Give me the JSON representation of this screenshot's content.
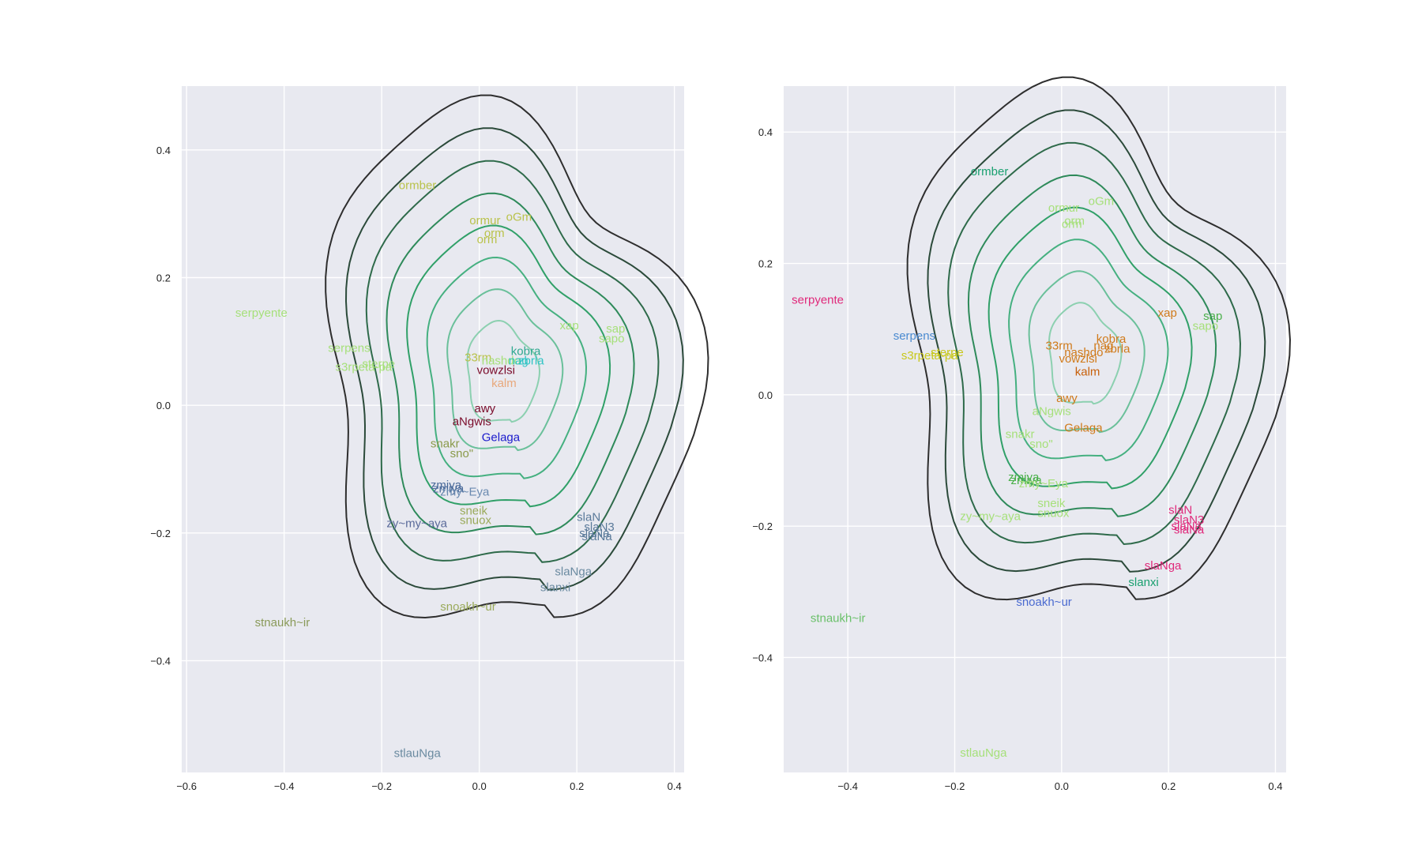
{
  "chart_data": [
    {
      "type": "contour",
      "title": "",
      "xlabel": "",
      "ylabel": "",
      "xlim": [
        -0.61,
        0.42
      ],
      "ylim": [
        -0.575,
        0.5
      ],
      "xticks": [
        -0.6,
        -0.4,
        -0.2,
        0.0,
        0.2,
        0.4
      ],
      "yticks": [
        -0.4,
        -0.2,
        0.0,
        0.2,
        0.4
      ],
      "xtick_labels": [
        "−0.6",
        "−0.4",
        "−0.2",
        "0.0",
        "0.2",
        "0.4"
      ],
      "ytick_labels": [
        "−0.4",
        "−0.2",
        "0.0",
        "0.2",
        "0.4"
      ],
      "grid": true,
      "background": "#e8e9f0",
      "kde_center": [
        0.045,
        0.05
      ],
      "points": [
        {
          "label": "serpyente",
          "x": -0.5,
          "y": 0.145,
          "color": "#a6e07a"
        },
        {
          "label": "ormber",
          "x": -0.165,
          "y": 0.345,
          "color": "#b9c24a"
        },
        {
          "label": "ormur",
          "x": -0.02,
          "y": 0.29,
          "color": "#b9c24a"
        },
        {
          "label": "oGm",
          "x": 0.055,
          "y": 0.295,
          "color": "#b9c24a"
        },
        {
          "label": "orm",
          "x": 0.01,
          "y": 0.27,
          "color": "#b9c24a"
        },
        {
          "label": "orm",
          "x": -0.005,
          "y": 0.26,
          "color": "#b9c24a"
        },
        {
          "label": "serpens",
          "x": -0.31,
          "y": 0.09,
          "color": "#a6e07a"
        },
        {
          "label": "s3rpeta-pa",
          "x": -0.295,
          "y": 0.06,
          "color": "#a6e07a"
        },
        {
          "label": "sterpe",
          "x": -0.24,
          "y": 0.065,
          "color": "#a6e07a"
        },
        {
          "label": "xap",
          "x": 0.165,
          "y": 0.125,
          "color": "#a6e07a"
        },
        {
          "label": "sap",
          "x": 0.26,
          "y": 0.12,
          "color": "#a6e07a"
        },
        {
          "label": "sapo",
          "x": 0.245,
          "y": 0.105,
          "color": "#a6e07a"
        },
        {
          "label": "33rm",
          "x": -0.03,
          "y": 0.075,
          "color": "#b9c24a"
        },
        {
          "label": "kobra",
          "x": 0.065,
          "y": 0.085,
          "color": "#2ea88f"
        },
        {
          "label": "nashdo",
          "x": 0.005,
          "y": 0.07,
          "color": "#a6e07a"
        },
        {
          "label": "nag",
          "x": 0.06,
          "y": 0.07,
          "color": "#2ec4c4"
        },
        {
          "label": "zbrla",
          "x": 0.08,
          "y": 0.07,
          "color": "#2ec4c4"
        },
        {
          "label": "vowzlsi",
          "x": -0.005,
          "y": 0.055,
          "color": "#7a0b2a"
        },
        {
          "label": "kalm",
          "x": 0.025,
          "y": 0.035,
          "color": "#e8a87c"
        },
        {
          "label": "awy",
          "x": -0.01,
          "y": -0.005,
          "color": "#7a0b2a"
        },
        {
          "label": "aNgwis",
          "x": -0.055,
          "y": -0.025,
          "color": "#7a0b2a"
        },
        {
          "label": "Gelaga",
          "x": 0.005,
          "y": -0.05,
          "color": "#1a1acc"
        },
        {
          "label": "snakr",
          "x": -0.1,
          "y": -0.06,
          "color": "#8a9a4a"
        },
        {
          "label": "sno\"",
          "x": -0.06,
          "y": -0.075,
          "color": "#8a9a4a"
        },
        {
          "label": "zmiya",
          "x": -0.1,
          "y": -0.125,
          "color": "#4a6a9a"
        },
        {
          "label": "zmiya",
          "x": -0.095,
          "y": -0.13,
          "color": "#4a6a9a"
        },
        {
          "label": "zmy~Eya",
          "x": -0.08,
          "y": -0.135,
          "color": "#6a8ab0"
        },
        {
          "label": "sneik",
          "x": -0.04,
          "y": -0.165,
          "color": "#9aaa5a"
        },
        {
          "label": "snuox",
          "x": -0.04,
          "y": -0.18,
          "color": "#9aaa5a"
        },
        {
          "label": "zy~my~aya",
          "x": -0.19,
          "y": -0.185,
          "color": "#5a6a9a"
        },
        {
          "label": "slaN",
          "x": 0.2,
          "y": -0.175,
          "color": "#5a7a9a"
        },
        {
          "label": "slaN3",
          "x": 0.215,
          "y": -0.19,
          "color": "#5a7a9a"
        },
        {
          "label": "slaNa",
          "x": 0.205,
          "y": -0.2,
          "color": "#5a7a9a"
        },
        {
          "label": "slaNa",
          "x": 0.21,
          "y": -0.205,
          "color": "#5a7a9a"
        },
        {
          "label": "slaNga",
          "x": 0.155,
          "y": -0.26,
          "color": "#6a8aa0"
        },
        {
          "label": "slanxi",
          "x": 0.125,
          "y": -0.285,
          "color": "#6a8aa0"
        },
        {
          "label": "snoakh~ur",
          "x": -0.08,
          "y": -0.315,
          "color": "#9aaa5a"
        },
        {
          "label": "stnaukh~ir",
          "x": -0.46,
          "y": -0.34,
          "color": "#8a9a5a"
        },
        {
          "label": "stlauNga",
          "x": -0.175,
          "y": -0.545,
          "color": "#6a8aa0"
        }
      ]
    },
    {
      "type": "contour",
      "title": "",
      "xlabel": "",
      "ylabel": "",
      "xlim": [
        -0.52,
        0.42
      ],
      "ylim": [
        -0.575,
        0.47
      ],
      "xticks": [
        -0.4,
        -0.2,
        0.0,
        0.2,
        0.4
      ],
      "yticks": [
        -0.4,
        -0.2,
        0.0,
        0.2,
        0.4
      ],
      "xtick_labels": [
        "−0.4",
        "−0.2",
        "0.0",
        "0.2",
        "0.4"
      ],
      "ytick_labels": [
        "−0.4",
        "−0.2",
        "0.0",
        "0.2",
        "0.4"
      ],
      "grid": true,
      "background": "#e8e9f0",
      "kde_center": [
        0.04,
        0.06
      ],
      "points": [
        {
          "label": "serpyente",
          "x": -0.505,
          "y": 0.145,
          "color": "#e0287a"
        },
        {
          "label": "ormber",
          "x": -0.17,
          "y": 0.34,
          "color": "#1aa070"
        },
        {
          "label": "ormur",
          "x": -0.025,
          "y": 0.285,
          "color": "#a6e07a"
        },
        {
          "label": "oGm",
          "x": 0.05,
          "y": 0.295,
          "color": "#a6e07a"
        },
        {
          "label": "orm",
          "x": 0.005,
          "y": 0.265,
          "color": "#a6e07a"
        },
        {
          "label": "orm",
          "x": 0.0,
          "y": 0.26,
          "color": "#a6e07a"
        },
        {
          "label": "serpens",
          "x": -0.315,
          "y": 0.09,
          "color": "#4a8ad0"
        },
        {
          "label": "s3rpeta-pa",
          "x": -0.3,
          "y": 0.06,
          "color": "#c8c81a"
        },
        {
          "label": "sterpe",
          "x": -0.245,
          "y": 0.065,
          "color": "#c8c81a"
        },
        {
          "label": "xap",
          "x": 0.18,
          "y": 0.125,
          "color": "#d07a1a"
        },
        {
          "label": "sap",
          "x": 0.265,
          "y": 0.12,
          "color": "#4ab04a"
        },
        {
          "label": "sapo",
          "x": 0.245,
          "y": 0.105,
          "color": "#a6e07a"
        },
        {
          "label": "33rm",
          "x": -0.03,
          "y": 0.075,
          "color": "#d07a1a"
        },
        {
          "label": "kobra",
          "x": 0.065,
          "y": 0.085,
          "color": "#d07a1a"
        },
        {
          "label": "nashdo",
          "x": 0.005,
          "y": 0.065,
          "color": "#d07a1a"
        },
        {
          "label": "nag",
          "x": 0.06,
          "y": 0.075,
          "color": "#d07a1a"
        },
        {
          "label": "zbrla",
          "x": 0.08,
          "y": 0.07,
          "color": "#d07a1a"
        },
        {
          "label": "vowzlsi",
          "x": -0.005,
          "y": 0.055,
          "color": "#d07a1a"
        },
        {
          "label": "kalm",
          "x": 0.025,
          "y": 0.035,
          "color": "#c8600a"
        },
        {
          "label": "awy",
          "x": -0.01,
          "y": -0.005,
          "color": "#d07a1a"
        },
        {
          "label": "aNgwis",
          "x": -0.055,
          "y": -0.025,
          "color": "#a6e07a"
        },
        {
          "label": "Gelaga",
          "x": 0.005,
          "y": -0.05,
          "color": "#d07a1a"
        },
        {
          "label": "snakr",
          "x": -0.105,
          "y": -0.06,
          "color": "#a6e07a"
        },
        {
          "label": "sno\"",
          "x": -0.06,
          "y": -0.075,
          "color": "#a6e07a"
        },
        {
          "label": "zmiya",
          "x": -0.1,
          "y": -0.125,
          "color": "#4ab04a"
        },
        {
          "label": "zmiya",
          "x": -0.095,
          "y": -0.13,
          "color": "#4ab04a"
        },
        {
          "label": "zmy~Eya",
          "x": -0.08,
          "y": -0.135,
          "color": "#a6e07a"
        },
        {
          "label": "sneik",
          "x": -0.045,
          "y": -0.165,
          "color": "#a6e07a"
        },
        {
          "label": "snuox",
          "x": -0.045,
          "y": -0.18,
          "color": "#a6e07a"
        },
        {
          "label": "zy~my~aya",
          "x": -0.19,
          "y": -0.185,
          "color": "#a6e07a"
        },
        {
          "label": "slaN",
          "x": 0.2,
          "y": -0.175,
          "color": "#e0287a"
        },
        {
          "label": "slaN3",
          "x": 0.21,
          "y": -0.19,
          "color": "#e0287a"
        },
        {
          "label": "slaNa",
          "x": 0.205,
          "y": -0.2,
          "color": "#e0287a"
        },
        {
          "label": "slaNa",
          "x": 0.21,
          "y": -0.205,
          "color": "#e0287a"
        },
        {
          "label": "slaNga",
          "x": 0.155,
          "y": -0.26,
          "color": "#e0287a"
        },
        {
          "label": "slanxi",
          "x": 0.125,
          "y": -0.285,
          "color": "#1aa070"
        },
        {
          "label": "snoakh~ur",
          "x": -0.085,
          "y": -0.315,
          "color": "#4a6ad0"
        },
        {
          "label": "stnaukh~ir",
          "x": -0.47,
          "y": -0.34,
          "color": "#6ac06a"
        },
        {
          "label": "stlauNga",
          "x": -0.19,
          "y": -0.545,
          "color": "#a6e07a"
        }
      ]
    }
  ],
  "contour_colors": [
    "#2e2e2e",
    "#2b4a3a",
    "#2e6a4a",
    "#2e8a5a",
    "#30a068",
    "#45b080",
    "#6ac09a",
    "#8cd0b0"
  ]
}
